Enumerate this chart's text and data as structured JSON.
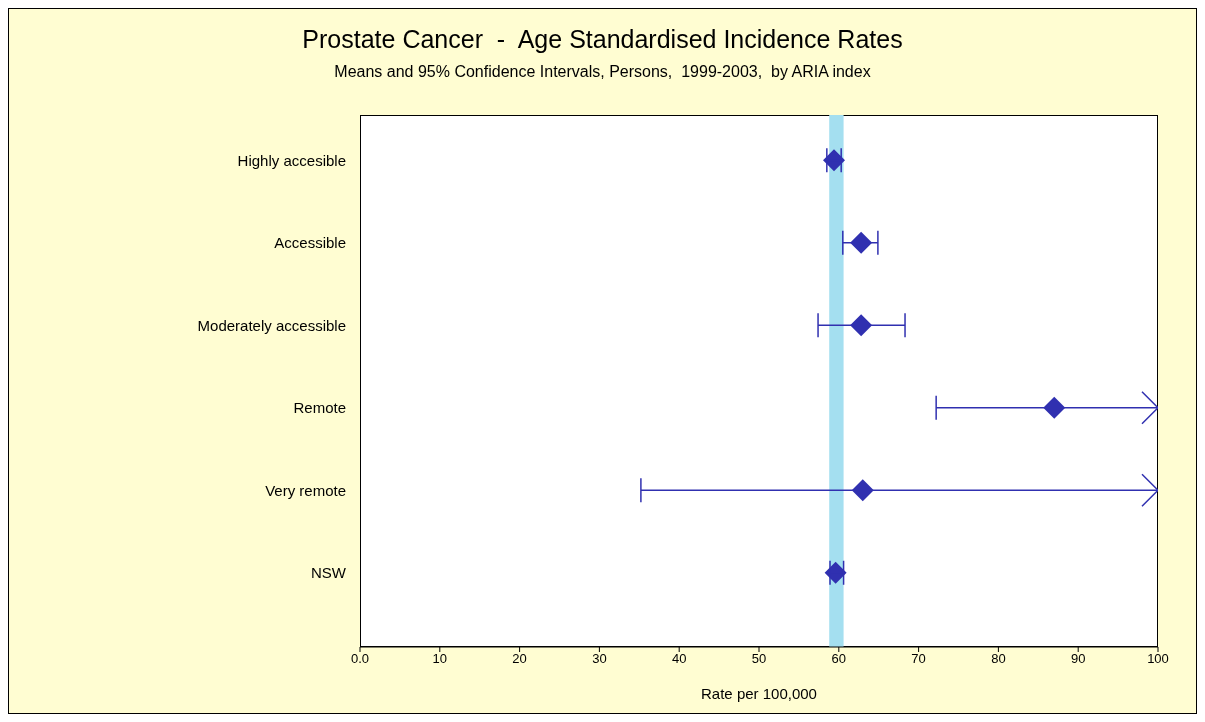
{
  "chart_data": {
    "type": "scatter",
    "orientation": "horizontal",
    "title": "Prostate Cancer  -  Age Standardised Incidence Rates",
    "subtitle": "Means and 95% Confidence Intervals, Persons,  1999-2003,  by ARIA index",
    "xlabel": "Rate per 100,000",
    "categories": [
      "Highly accesible",
      "Accessible",
      "Moderately accessible",
      "Remote",
      "Very remote",
      "NSW"
    ],
    "series": [
      {
        "color": "#3030b0",
        "values": [
          59.4,
          62.8,
          62.8,
          87.0,
          63.0,
          59.6
        ],
        "errors": [
          [
            58.5,
            60.3
          ],
          [
            60.5,
            64.9
          ],
          [
            57.4,
            68.3
          ],
          [
            72.2,
            100
          ],
          [
            35.2,
            100
          ],
          [
            58.9,
            60.6
          ]
        ]
      }
    ],
    "marker": "diamond",
    "xlim": [
      0,
      100
    ],
    "xticks": [
      {
        "value": 0,
        "label": "0.0"
      },
      10,
      20,
      30,
      40,
      50,
      60,
      70,
      80,
      90,
      100
    ],
    "bands": [
      {
        "axis": "x",
        "from": 58.8,
        "to": 60.6,
        "color": "#a4dff0"
      }
    ]
  }
}
